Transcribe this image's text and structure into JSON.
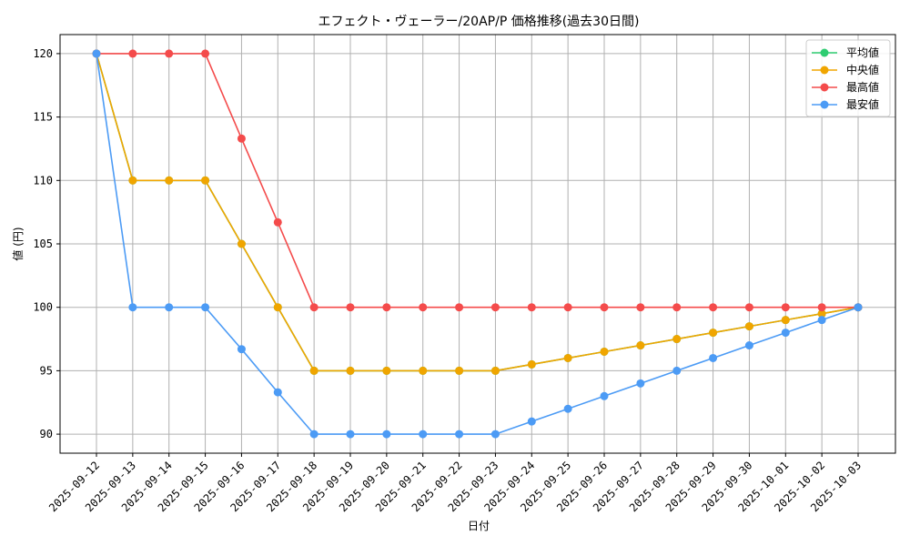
{
  "chart_data": {
    "type": "line",
    "title": "エフェクト・ヴェーラー/20AP/P 価格推移(過去30日間)",
    "xlabel": "日付",
    "ylabel": "値 (円)",
    "ylim": [
      88.5,
      121.5
    ],
    "yticks": [
      90,
      95,
      100,
      105,
      110,
      115,
      120
    ],
    "grid": true,
    "legend_position": "top-right",
    "categories": [
      "2025-09-12",
      "2025-09-13",
      "2025-09-14",
      "2025-09-15",
      "2025-09-16",
      "2025-09-17",
      "2025-09-18",
      "2025-09-19",
      "2025-09-20",
      "2025-09-21",
      "2025-09-22",
      "2025-09-23",
      "2025-09-24",
      "2025-09-25",
      "2025-09-26",
      "2025-09-27",
      "2025-09-28",
      "2025-09-29",
      "2025-09-30",
      "2025-10-01",
      "2025-10-02",
      "2025-10-03"
    ],
    "series": [
      {
        "name": "平均値",
        "color": "#2ecc71",
        "values": [
          120,
          110,
          110,
          110,
          105,
          100,
          95,
          95,
          95,
          95,
          95,
          95,
          95.5,
          96,
          96.5,
          97,
          97.5,
          98,
          98.5,
          99,
          99.5,
          100
        ]
      },
      {
        "name": "中央値",
        "color": "#f0a500",
        "values": [
          120,
          110,
          110,
          110,
          105,
          100,
          95,
          95,
          95,
          95,
          95,
          95,
          95.5,
          96,
          96.5,
          97,
          97.5,
          98,
          98.5,
          99,
          99.5,
          100
        ]
      },
      {
        "name": "最高値",
        "color": "#f44b4b",
        "values": [
          120,
          120,
          120,
          120,
          113.3,
          106.7,
          100,
          100,
          100,
          100,
          100,
          100,
          100,
          100,
          100,
          100,
          100,
          100,
          100,
          100,
          100,
          100
        ]
      },
      {
        "name": "最安値",
        "color": "#4c9bf5",
        "values": [
          120,
          100,
          100,
          100,
          96.7,
          93.3,
          90,
          90,
          90,
          90,
          90,
          90,
          91,
          92,
          93,
          94,
          95,
          96,
          97,
          98,
          99,
          100
        ]
      }
    ]
  }
}
